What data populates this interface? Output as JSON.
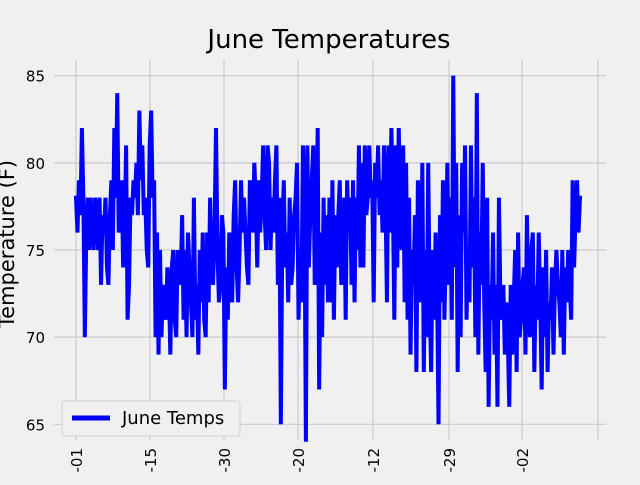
{
  "figure": {
    "background": "#f0f0f0"
  },
  "chart_data": {
    "type": "line",
    "title": "June Temperatures",
    "xlabel": "",
    "ylabel": "Temperature (F)",
    "ylim": [
      64.1,
      85.9
    ],
    "yticks": [
      65,
      70,
      75,
      80,
      85
    ],
    "xticks": [
      "-01",
      "-15",
      "-30",
      "-20",
      "-12",
      "-29",
      "-02"
    ],
    "grid": true,
    "legend": {
      "position": "lower-left",
      "entries": [
        "June Temps"
      ]
    },
    "colors": {
      "line": "#0000ff",
      "grid": "#cbcbcb",
      "axes_bg": "#f0f0f0",
      "text": "#000000"
    },
    "series": [
      {
        "name": "June Temps",
        "values": [
          78,
          76,
          79,
          77,
          82,
          78,
          70,
          76,
          78,
          75,
          78,
          76,
          75,
          78,
          77,
          75,
          78,
          73,
          77,
          76,
          78,
          74,
          73,
          77,
          79,
          75,
          82,
          78,
          84,
          76,
          77,
          79,
          74,
          76,
          81,
          71,
          73,
          78,
          77,
          79,
          78,
          80,
          77,
          83,
          79,
          81,
          77,
          78,
          75,
          74,
          81,
          83,
          78,
          79,
          70,
          76,
          69,
          75,
          70,
          73,
          72,
          71,
          74,
          73,
          69,
          74,
          75,
          71,
          70,
          75,
          74,
          73,
          77,
          71,
          75,
          70,
          76,
          74,
          72,
          70,
          78,
          71,
          73,
          69,
          75,
          72,
          76,
          71,
          70,
          76,
          72,
          78,
          74,
          73,
          76,
          82,
          75,
          72,
          73,
          77,
          76,
          67,
          74,
          71,
          76,
          75,
          72,
          77,
          79,
          74,
          72,
          75,
          79,
          76,
          78,
          76,
          74,
          73,
          79,
          78,
          76,
          80,
          78,
          74,
          79,
          76,
          78,
          81,
          77,
          75,
          81,
          80,
          75,
          78,
          76,
          79,
          81,
          73,
          78,
          65,
          76,
          79,
          74,
          76,
          72,
          78,
          73,
          74,
          77,
          78,
          80,
          71,
          75,
          72,
          81,
          78,
          64,
          81,
          74,
          77,
          79,
          81,
          73,
          75,
          82,
          67,
          76,
          70,
          78,
          73,
          77,
          72,
          78,
          72,
          79,
          71,
          77,
          74,
          77,
          79,
          73,
          75,
          78,
          71,
          79,
          76,
          78,
          73,
          79,
          72,
          78,
          75,
          81,
          74,
          80,
          74,
          81,
          77,
          78,
          81,
          78,
          79,
          72,
          80,
          78,
          81,
          77,
          79,
          76,
          81,
          78,
          72,
          81,
          76,
          82,
          78,
          71,
          81,
          74,
          82,
          77,
          75,
          81,
          72,
          80,
          71,
          78,
          69,
          75,
          73,
          77,
          68,
          79,
          76,
          72,
          80,
          68,
          75,
          70,
          80,
          72,
          68,
          75,
          71,
          76,
          73,
          65,
          77,
          72,
          79,
          71,
          75,
          80,
          73,
          78,
          71,
          85,
          74,
          80,
          68,
          77,
          70,
          80,
          76,
          81,
          71,
          75,
          72,
          81,
          74,
          78,
          70,
          84,
          69,
          76,
          73,
          80,
          72,
          68,
          78,
          66,
          73,
          71,
          76,
          69,
          73,
          66,
          78,
          72,
          71,
          73,
          69,
          72,
          70,
          66,
          73,
          69,
          72,
          75,
          68,
          76,
          70,
          71,
          73,
          74,
          69,
          77,
          72,
          70,
          75,
          76,
          68,
          73,
          71,
          76,
          72,
          67,
          74,
          70,
          75,
          68,
          72,
          71,
          74,
          69,
          73,
          75,
          73,
          72,
          70,
          75,
          69,
          74,
          72,
          75,
          73,
          71,
          79,
          74,
          77,
          79,
          76,
          78
        ]
      }
    ]
  }
}
